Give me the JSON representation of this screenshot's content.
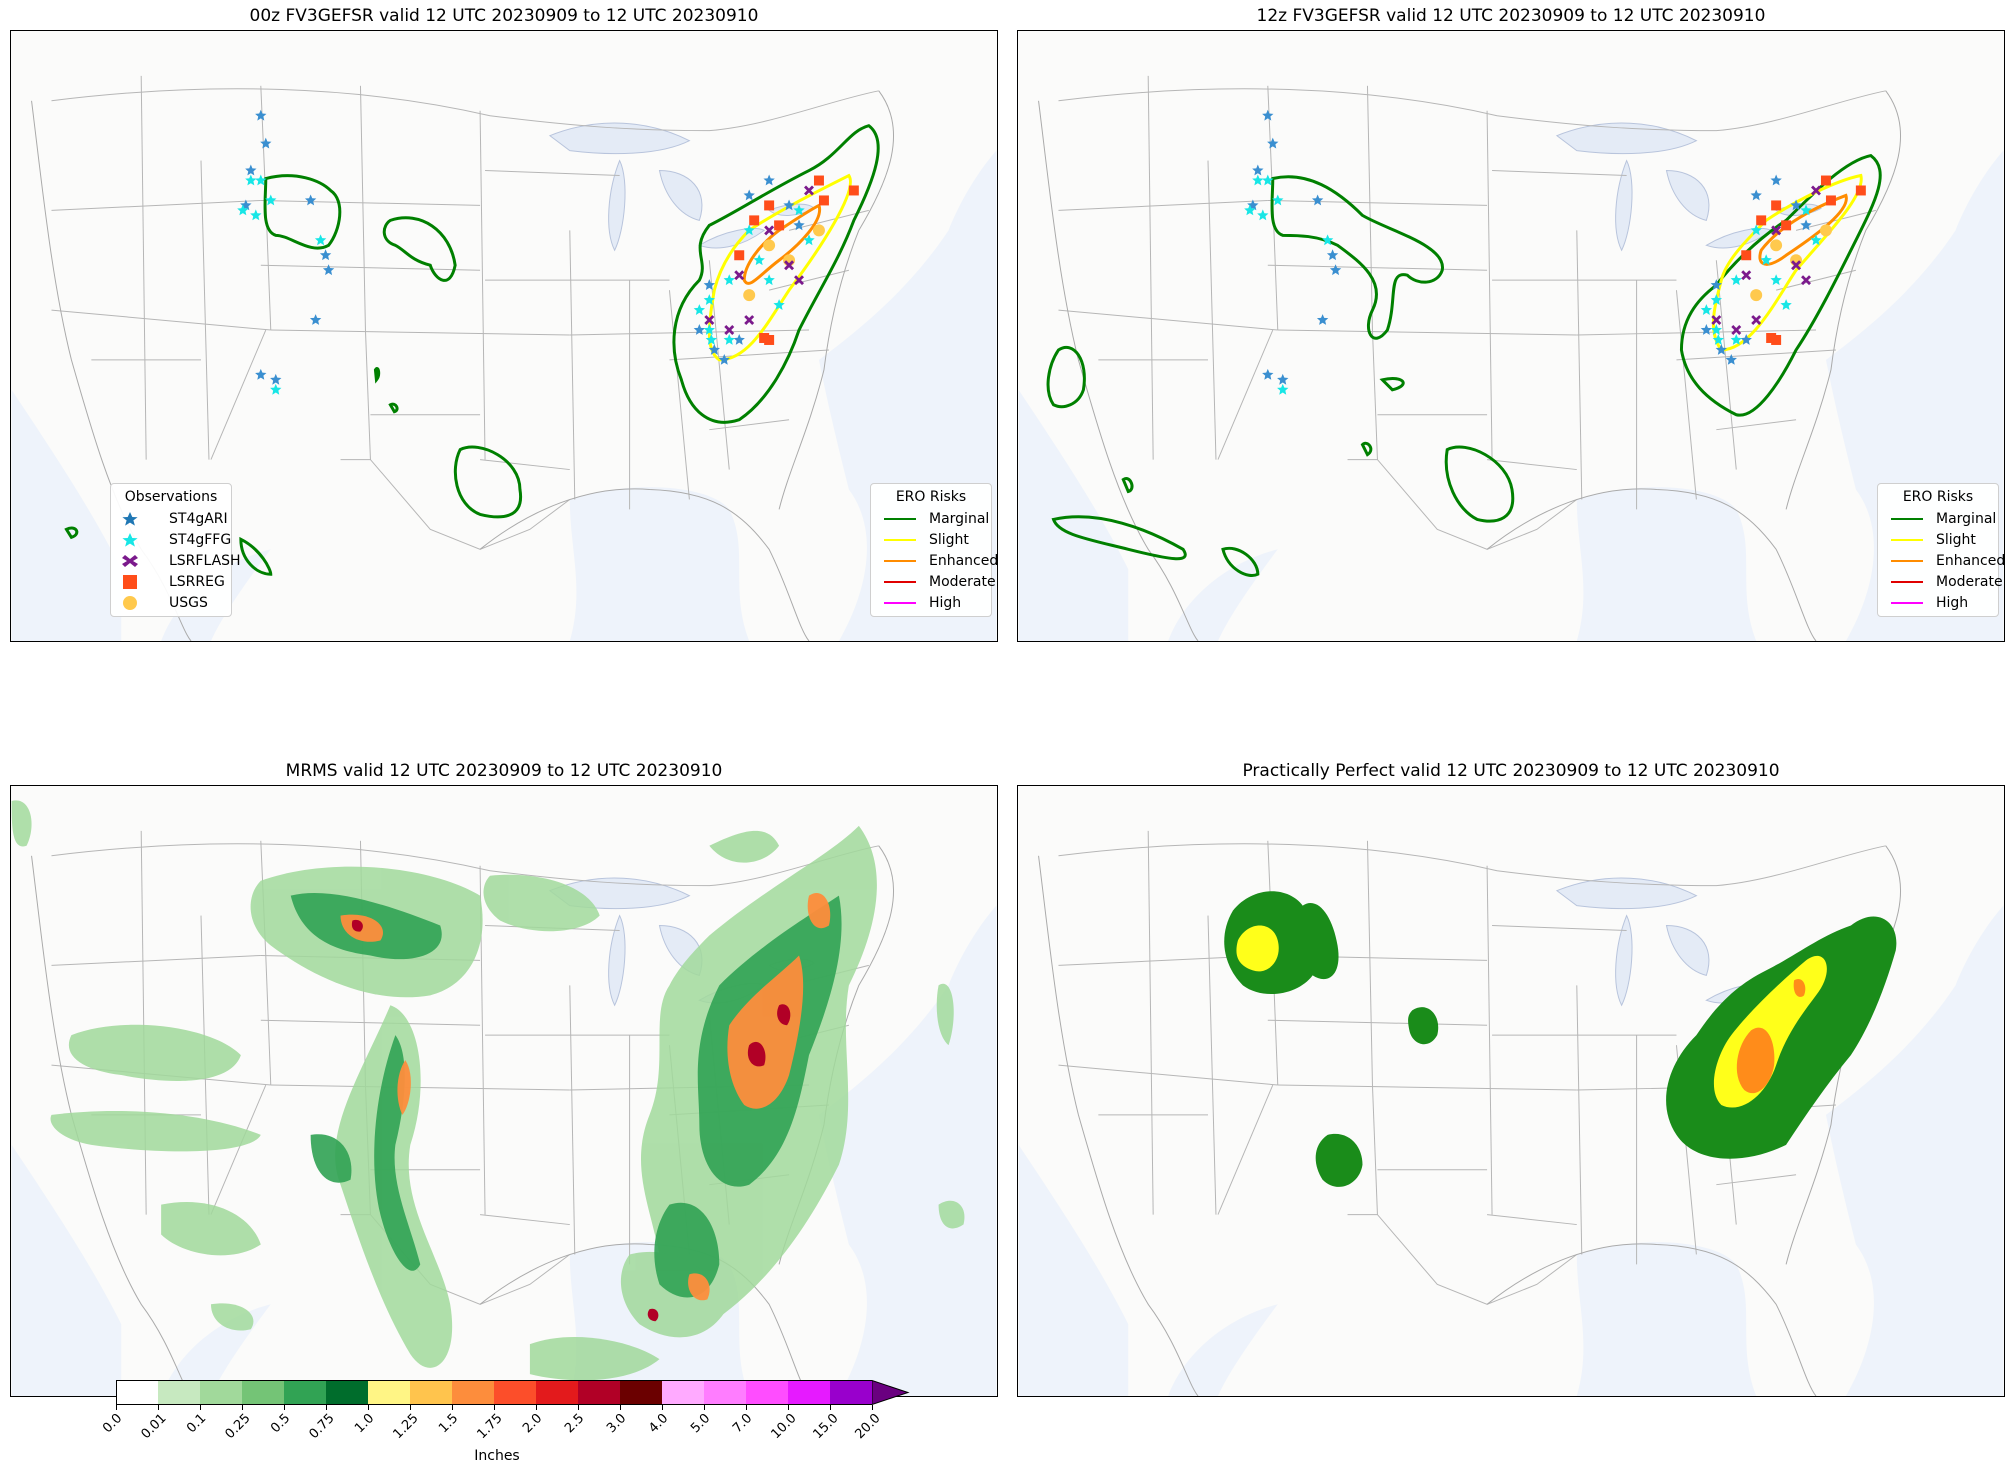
{
  "panels": [
    {
      "id": "tl",
      "title": "00z FV3GEFSR valid 12 UTC 20230909 to 12 UTC 20230910"
    },
    {
      "id": "tr",
      "title": "12z FV3GEFSR valid 12 UTC 20230909 to 12 UTC 20230910"
    },
    {
      "id": "bl",
      "title": "MRMS valid 12 UTC 20230909 to 12 UTC 20230910"
    },
    {
      "id": "br",
      "title": "Practically Perfect valid 12 UTC 20230909 to 12 UTC 20230910"
    }
  ],
  "observations_legend": {
    "title": "Observations",
    "items": [
      {
        "label": "ST4gARI",
        "color": "#1f77b4",
        "marker": "star"
      },
      {
        "label": "ST4gFFG",
        "color": "#17e6e6",
        "marker": "star"
      },
      {
        "label": "LSRFLASH",
        "color": "#7b1a8c",
        "marker": "x-cross"
      },
      {
        "label": "LSRREG",
        "color": "#ff4d1a",
        "marker": "square"
      },
      {
        "label": "USGS",
        "color": "#ffc94d",
        "marker": "circle"
      }
    ]
  },
  "ero_legend": {
    "title": "ERO Risks",
    "items": [
      {
        "label": "Marginal",
        "color": "#008000"
      },
      {
        "label": "Slight",
        "color": "#ffff00"
      },
      {
        "label": "Enhanced",
        "color": "#ff8c00"
      },
      {
        "label": "Moderate",
        "color": "#e00000"
      },
      {
        "label": "High",
        "color": "#ff00ff"
      }
    ]
  },
  "colorbar": {
    "label": "Inches",
    "ticks": [
      "0.0",
      "0.01",
      "0.1",
      "0.25",
      "0.5",
      "0.75",
      "1.0",
      "1.25",
      "1.5",
      "1.75",
      "2.0",
      "2.5",
      "3.0",
      "4.0",
      "5.0",
      "7.0",
      "10.0",
      "15.0",
      "20.0"
    ],
    "colors": [
      "#ffffff",
      "#c7e9c0",
      "#a1d99b",
      "#74c476",
      "#31a354",
      "#006d2c",
      "#fff585",
      "#ffc44d",
      "#fd8d3c",
      "#fc4e2a",
      "#e31a1c",
      "#b10026",
      "#6b0000",
      "#ffaaff",
      "#ff7dff",
      "#ff4dff",
      "#e61aff",
      "#9900cc"
    ],
    "extend_color": "#6a0080"
  },
  "pp_colors": {
    "marginal": "#1a8c1a",
    "slight": "#ffff1a",
    "enhanced": "#ff8c1a"
  }
}
